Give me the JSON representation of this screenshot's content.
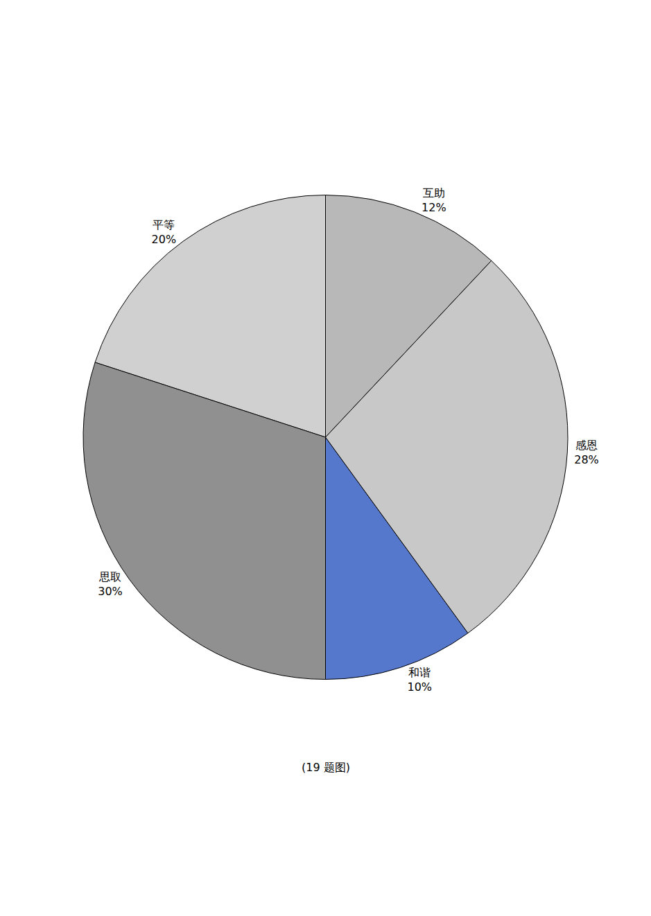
{
  "chart_data": {
    "type": "pie",
    "categories": [
      "互助",
      "平等",
      "思取",
      "和谐",
      "感恩"
    ],
    "values": [
      12,
      20,
      30,
      10,
      28
    ],
    "value_labels": [
      "12%",
      "20%",
      "30%",
      "10%",
      "28%"
    ],
    "colors": [
      "#b8b8b8",
      "#d0d0d0",
      "#909090",
      "#5577cc",
      "#c8c8c8"
    ],
    "annotations": [
      "(19 题图)"
    ]
  }
}
